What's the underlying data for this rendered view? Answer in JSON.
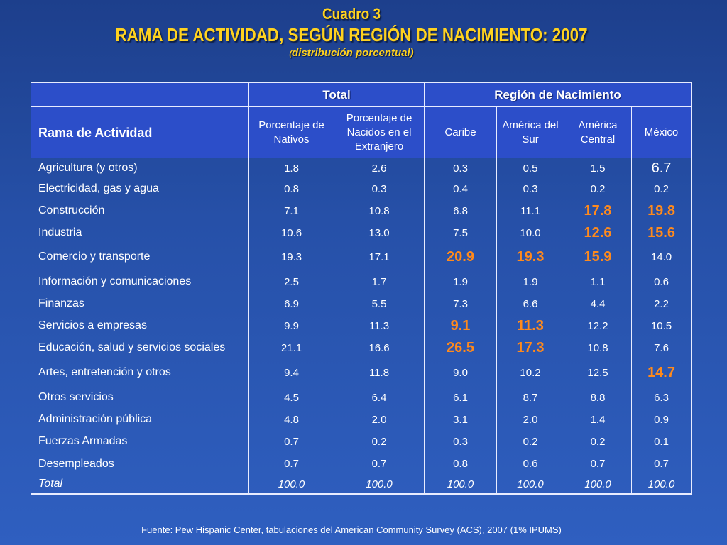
{
  "title": {
    "line1": "Cuadro 3",
    "line2": "RAMA DE ACTIVIDAD, SEGÚN REGIÓN DE NACIMIENTO: 2007",
    "line3_open": "(",
    "line3": "distribución porcentual)"
  },
  "table": {
    "group_headers": {
      "total": "Total",
      "region": "Región de Nacimiento"
    },
    "row_header": "Rama de Actividad",
    "columns": [
      "Porcentaje de Nativos",
      "Porcentaje de Nacidos en el Extranjero",
      "Caribe",
      "América del Sur",
      "América Central",
      "México"
    ],
    "rows": [
      {
        "label": "Agricultura (y otros)",
        "cells": [
          "1.8",
          "2.6",
          "0.3",
          "0.5",
          "1.5",
          "6.7"
        ]
      },
      {
        "label": "Electricidad, gas y agua",
        "cells": [
          "0.8",
          "0.3",
          "0.4",
          "0.3",
          "0.2",
          "0.2"
        ]
      },
      {
        "label": "Construcción",
        "cells": [
          "7.1",
          "10.8",
          "6.8",
          "11.1",
          "17.8",
          "19.8"
        ]
      },
      {
        "label": "Industria",
        "cells": [
          "10.6",
          "13.0",
          "7.5",
          "10.0",
          "12.6",
          "15.6"
        ]
      },
      {
        "label": "Comercio y transporte",
        "cells": [
          "19.3",
          "17.1",
          "20.9",
          "19.3",
          "15.9",
          "14.0"
        ]
      },
      {
        "label": "Información y comunicaciones",
        "cells": [
          "2.5",
          "1.7",
          "1.9",
          "1.9",
          "1.1",
          "0.6"
        ]
      },
      {
        "label": "Finanzas",
        "cells": [
          "6.9",
          "5.5",
          "7.3",
          "6.6",
          "4.4",
          "2.2"
        ]
      },
      {
        "label": "Servicios a empresas",
        "cells": [
          "9.9",
          "11.3",
          "9.1",
          "11.3",
          "12.2",
          "10.5"
        ]
      },
      {
        "label": "Educación, salud y servicios sociales",
        "cells": [
          "21.1",
          "16.6",
          "26.5",
          "17.3",
          "10.8",
          "7.6"
        ]
      },
      {
        "label": "Artes, entretención y otros",
        "cells": [
          "9.4",
          "11.8",
          "9.0",
          "10.2",
          "12.5",
          "14.7"
        ]
      },
      {
        "label": "Otros servicios",
        "cells": [
          "4.5",
          "6.4",
          "6.1",
          "8.7",
          "8.8",
          "6.3"
        ]
      },
      {
        "label": "Administración pública",
        "cells": [
          "4.8",
          "2.0",
          "3.1",
          "2.0",
          "1.4",
          "0.9"
        ]
      },
      {
        "label": "Fuerzas Armadas",
        "cells": [
          "0.7",
          "0.2",
          "0.3",
          "0.2",
          "0.2",
          "0.1"
        ]
      },
      {
        "label": "Desempleados",
        "cells": [
          "0.7",
          "0.7",
          "0.8",
          "0.6",
          "0.7",
          "0.7"
        ]
      },
      {
        "label": "Total",
        "cells": [
          "100.0",
          "100.0",
          "100.0",
          "100.0",
          "100.0",
          "100.0"
        ]
      }
    ]
  },
  "source": "Fuente: Pew Hispanic Center, tabulaciones del American Community Survey (ACS), 2007 (1% IPUMS)",
  "colors": {
    "background": "#2650a8",
    "title": "#ffd21f",
    "highlight": "#ff8a1c",
    "header": "#2c4ec9"
  }
}
